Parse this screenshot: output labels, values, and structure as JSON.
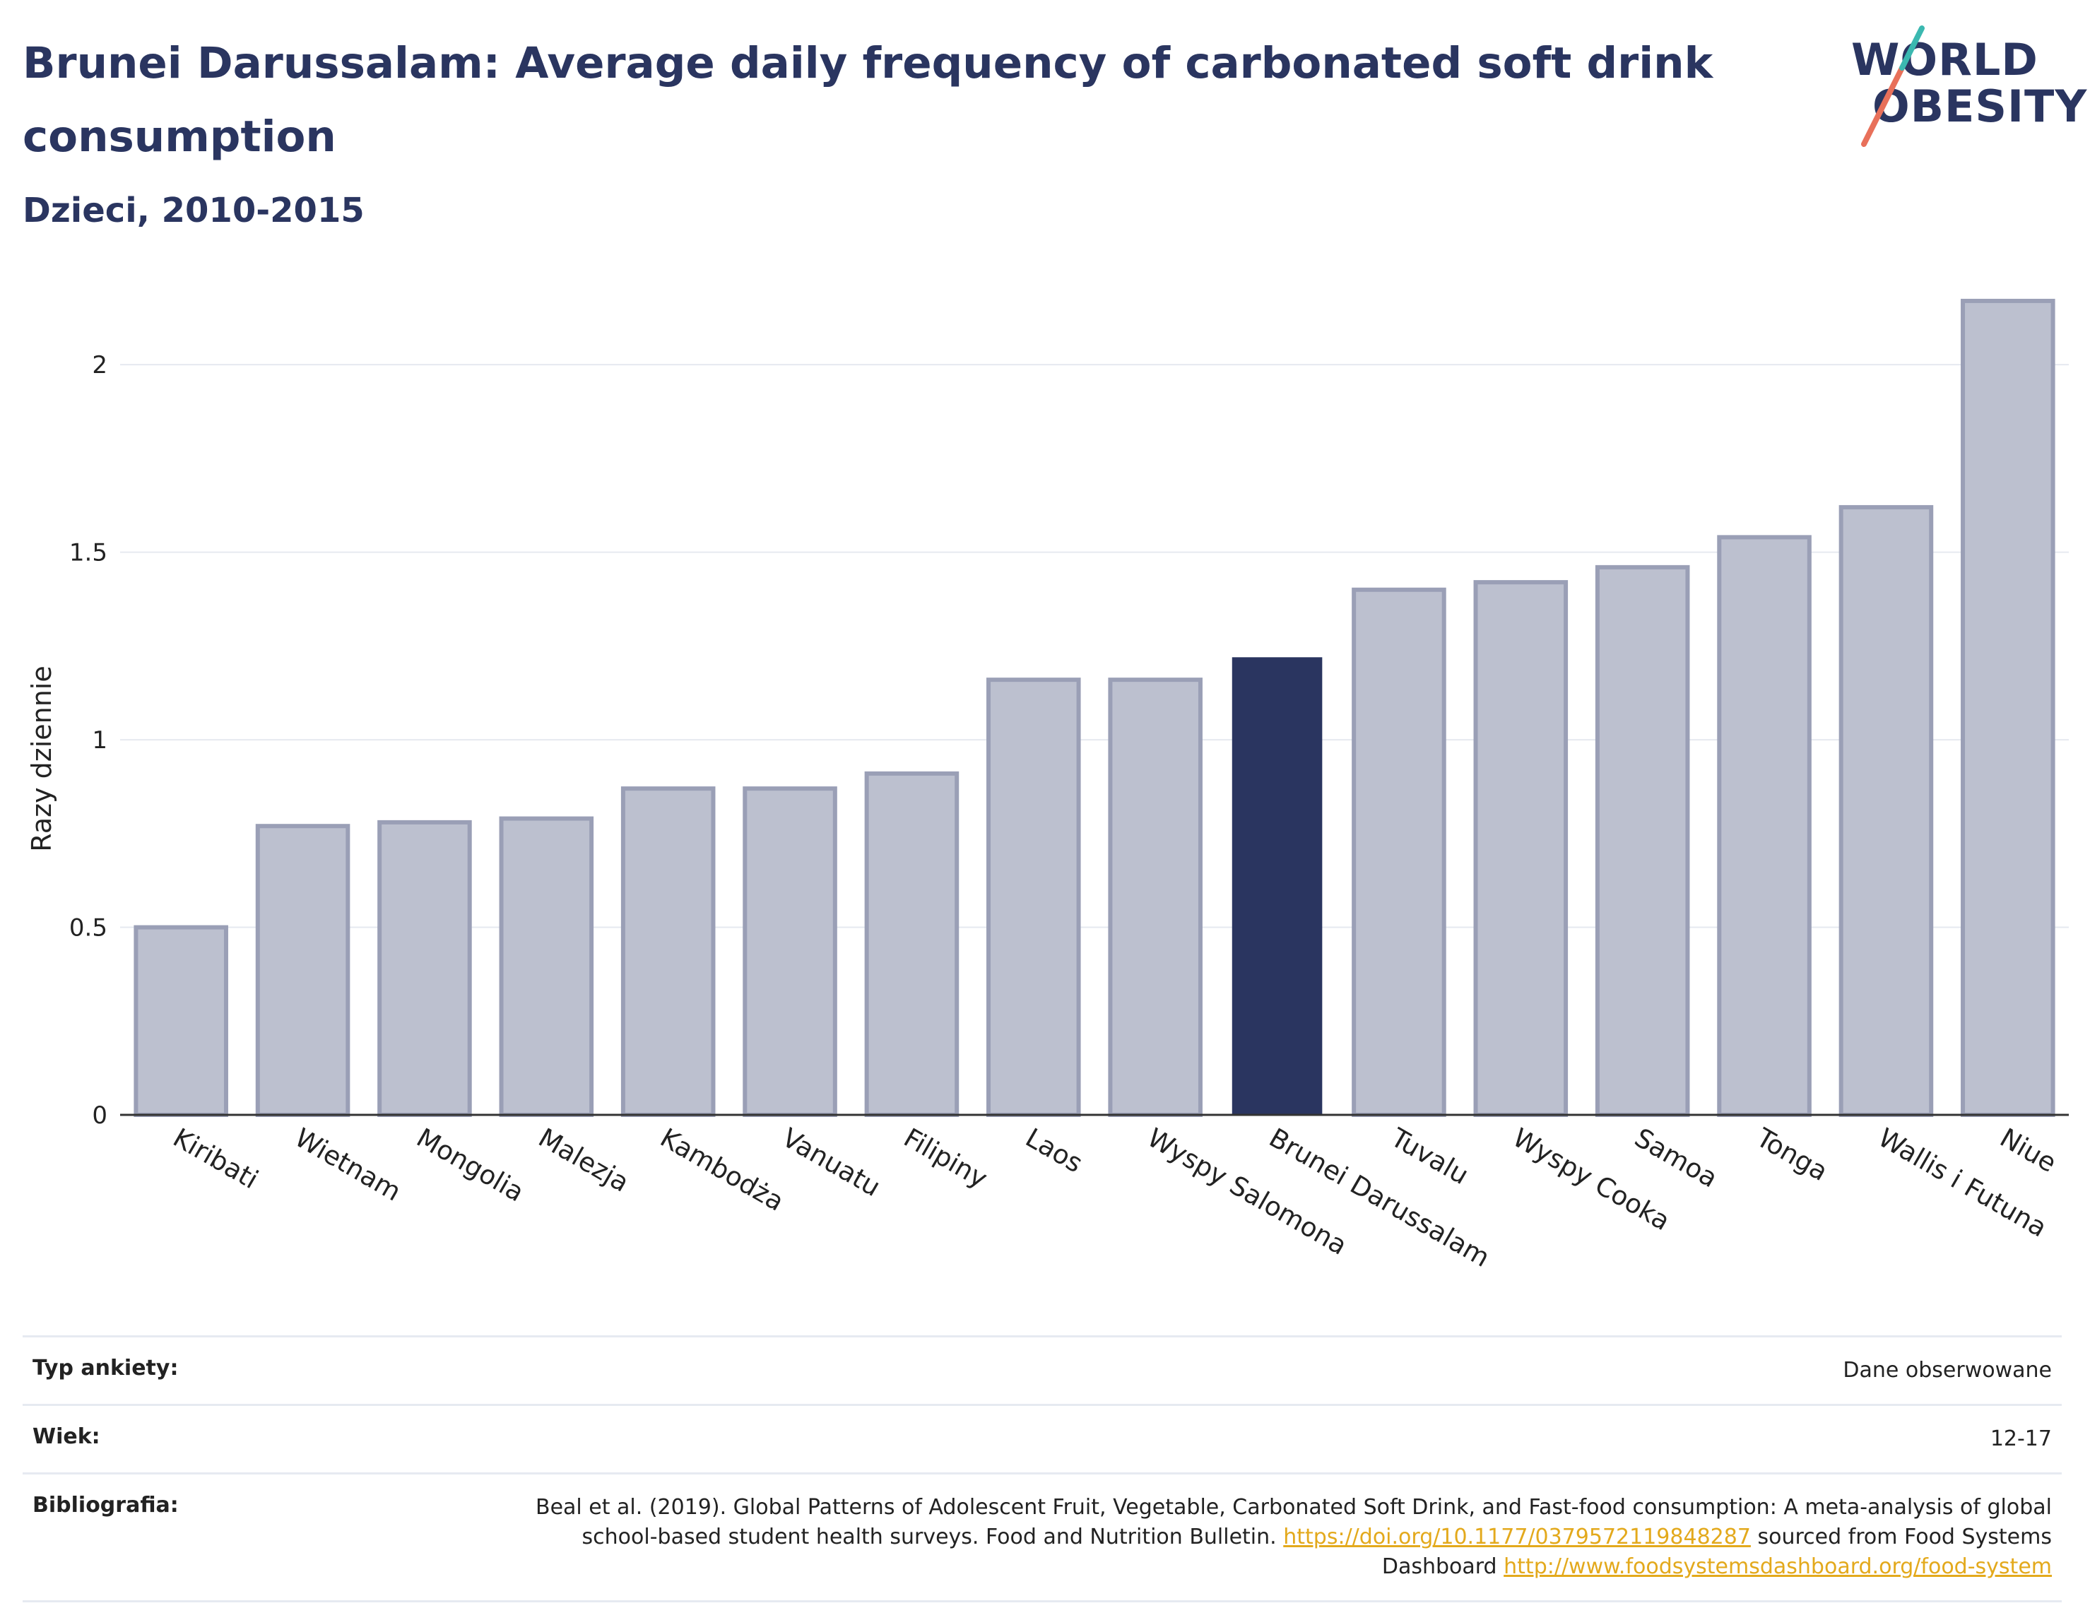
{
  "header": {
    "title": "Brunei Darussalam: Average daily frequency of carbonated soft drink consumption",
    "subtitle": "Dzieci, 2010-2015"
  },
  "logo": {
    "line1": "WORLD",
    "line2": "OBESITY",
    "slash_colors": [
      "#e8705a",
      "#3bb8b0"
    ]
  },
  "colors": {
    "highlight": "#2a3560",
    "bar": "#bcc0cf",
    "bar_stroke": "#9a9fb6",
    "grid": "#e6e9f0",
    "link": "#e3a91c"
  },
  "chart_data": {
    "type": "bar",
    "categories": [
      "Kiribati",
      "Wietnam",
      "Mongolia",
      "Malezja",
      "Kambodża",
      "Vanuatu",
      "Filipiny",
      "Laos",
      "Wyspy Salomona",
      "Brunei Darussalam",
      "Tuvalu",
      "Wyspy Cooka",
      "Samoa",
      "Tonga",
      "Wallis i Futuna",
      "Niue"
    ],
    "values": [
      0.5,
      0.77,
      0.78,
      0.79,
      0.87,
      0.87,
      0.91,
      1.16,
      1.16,
      1.22,
      1.4,
      1.42,
      1.46,
      1.54,
      1.62,
      2.17
    ],
    "highlight": "Brunei Darussalam",
    "ylabel": "Razy dziennie",
    "xlabel": "",
    "ylim": [
      0,
      2.2
    ],
    "yticks": [
      0,
      0.5,
      1,
      1.5,
      2
    ],
    "ytick_labels": [
      "0",
      "0.5",
      "1",
      "1.5",
      "2"
    ],
    "grid": true
  },
  "meta": {
    "survey_key": "Typ ankiety:",
    "survey_val": "Dane obserwowane",
    "age_key": "Wiek:",
    "age_val": "12-17",
    "bib_key": "Bibliografia:",
    "bib_text1": "Beal et al. (2019). Global Patterns of Adolescent Fruit, Vegetable, Carbonated Soft Drink, and Fast-food consumption: A meta-analysis of global school-based student health surveys. Food and Nutrition Bulletin.",
    "bib_link1": "https://doi.org/10.1177/0379572119848287",
    "bib_text2": "sourced from Food Systems Dashboard",
    "bib_link2": "http://www.foodsystemsdashboard.org/food-system"
  }
}
